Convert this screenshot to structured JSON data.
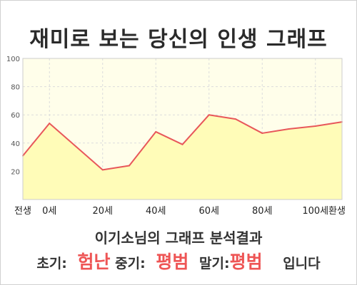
{
  "title": "재미로 보는 당신의 인생 그래프",
  "chart_data": {
    "type": "area",
    "x": [
      -10,
      0,
      20,
      30,
      40,
      50,
      60,
      70,
      80,
      90,
      100,
      110
    ],
    "values": [
      31,
      54,
      21,
      24,
      48,
      39,
      60,
      57,
      47,
      50,
      52,
      55
    ],
    "xticks": [
      {
        "x": -10,
        "label": "전생"
      },
      {
        "x": 0,
        "label": "0세"
      },
      {
        "x": 20,
        "label": "20세"
      },
      {
        "x": 40,
        "label": "40세"
      },
      {
        "x": 60,
        "label": "60세"
      },
      {
        "x": 80,
        "label": "80세"
      },
      {
        "x": 100,
        "label": "100세"
      },
      {
        "x": 110,
        "label": "환생"
      }
    ],
    "yticks": [
      20,
      40,
      60,
      80,
      100
    ],
    "ylim": [
      0,
      100
    ],
    "xlim": [
      -10,
      110
    ],
    "grid": true,
    "colors": {
      "line": "#e8575a",
      "fill": "#fffcb8",
      "plot_bg": "#fffeea",
      "grid": "#dcdcdc",
      "axis": "#888888"
    }
  },
  "result": {
    "title": "이기소님의 그래프 분석결과",
    "early_label": "초기:",
    "early_value": "험난",
    "middle_label": "중기:",
    "middle_value": "평범",
    "late_label": "말기:",
    "late_value": "평범",
    "suffix": "입니다"
  }
}
